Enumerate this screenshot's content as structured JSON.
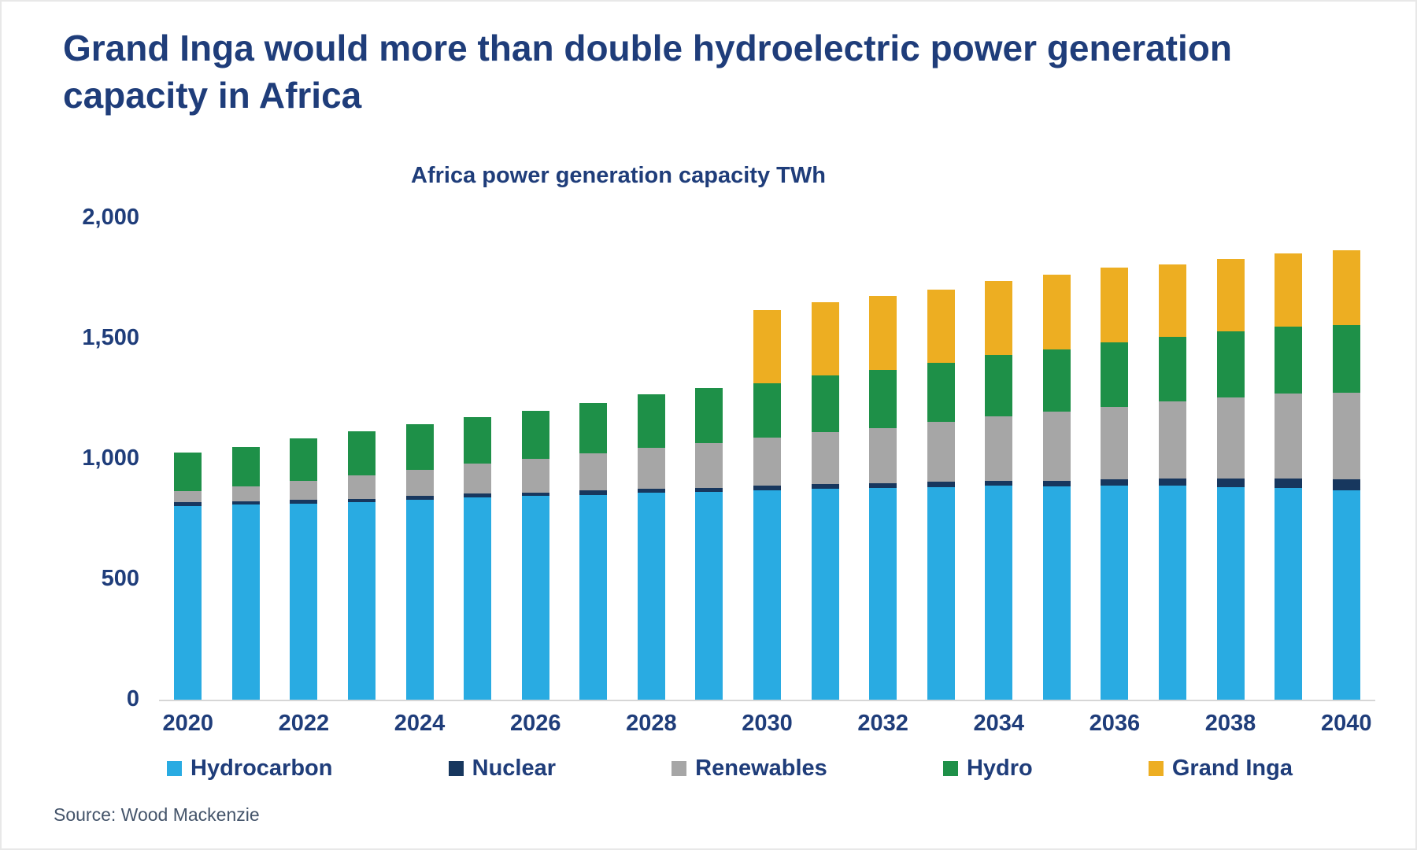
{
  "page": {
    "title": "Grand Inga would more than double hydroelectric power generation capacity in Africa",
    "source": "Source: Wood Mackenzie"
  },
  "colors": {
    "text_navy": "#1F3D7A",
    "source_text": "#44546A",
    "baseline": "#D6D6D6",
    "hydrocarbon": "#29ABE2",
    "nuclear": "#17375E",
    "renewables": "#A6A6A6",
    "hydro": "#1E9048",
    "grand_inga": "#EDAE22"
  },
  "chart_data": {
    "type": "bar",
    "stacked": true,
    "title": "Africa power generation capacity TWh",
    "unit": "TWh",
    "categories": [
      "2020",
      "2021",
      "2022",
      "2023",
      "2024",
      "2025",
      "2026",
      "2027",
      "2028",
      "2029",
      "2030",
      "2031",
      "2032",
      "2033",
      "2034",
      "2035",
      "2036",
      "2037",
      "2038",
      "2039",
      "2040"
    ],
    "x_axis_labels_shown": [
      "2020",
      "2022",
      "2024",
      "2026",
      "2028",
      "2030",
      "2032",
      "2034",
      "2036",
      "2038",
      "2040"
    ],
    "y_ticks": [
      0,
      500,
      1000,
      1500,
      2000
    ],
    "y_tick_labels": [
      "0",
      "500",
      "1,000",
      "1,500",
      "2,000"
    ],
    "ylim": [
      0,
      2000
    ],
    "grid": false,
    "legend_position": "bottom",
    "series": [
      {
        "name": "Hydrocarbon",
        "color": "#29ABE2",
        "values": [
          805,
          810,
          815,
          820,
          830,
          840,
          845,
          850,
          858,
          862,
          868,
          875,
          878,
          882,
          888,
          885,
          890,
          888,
          884,
          880,
          870
        ]
      },
      {
        "name": "Nuclear",
        "color": "#17375E",
        "values": [
          15,
          15,
          15,
          15,
          15,
          15,
          15,
          18,
          18,
          18,
          20,
          20,
          20,
          22,
          22,
          25,
          25,
          30,
          35,
          40,
          45
        ]
      },
      {
        "name": "Renewables",
        "color": "#A6A6A6",
        "values": [
          45,
          60,
          80,
          95,
          110,
          125,
          140,
          155,
          170,
          185,
          200,
          215,
          230,
          250,
          265,
          285,
          300,
          320,
          335,
          350,
          360
        ]
      },
      {
        "name": "Hydro",
        "color": "#1E9048",
        "values": [
          160,
          165,
          175,
          185,
          190,
          192,
          200,
          210,
          222,
          228,
          225,
          235,
          240,
          245,
          255,
          260,
          270,
          270,
          275,
          278,
          280
        ]
      },
      {
        "name": "Grand Inga",
        "color": "#EDAE22",
        "values": [
          0,
          0,
          0,
          0,
          0,
          0,
          0,
          0,
          0,
          0,
          305,
          305,
          310,
          305,
          310,
          310,
          310,
          300,
          300,
          305,
          310
        ]
      }
    ]
  }
}
